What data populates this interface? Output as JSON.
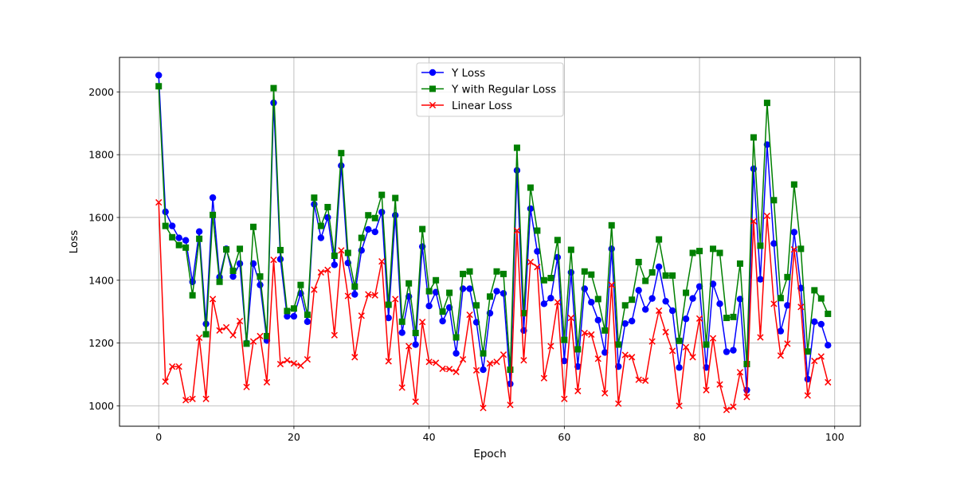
{
  "chart_data": {
    "type": "line",
    "title": "",
    "xlabel": "Epoch",
    "ylabel": "Loss",
    "xlim": [
      -5.8,
      103.8
    ],
    "ylim": [
      935,
      2110
    ],
    "xticks": [
      0,
      20,
      40,
      60,
      80,
      100
    ],
    "yticks": [
      1000,
      1200,
      1400,
      1600,
      1800,
      2000
    ],
    "grid": true,
    "legend_position": "upper center",
    "x": [
      0,
      1,
      2,
      3,
      4,
      5,
      6,
      7,
      8,
      9,
      10,
      11,
      12,
      13,
      14,
      15,
      16,
      17,
      18,
      19,
      20,
      21,
      22,
      23,
      24,
      25,
      26,
      27,
      28,
      29,
      30,
      31,
      32,
      33,
      34,
      35,
      36,
      37,
      38,
      39,
      40,
      41,
      42,
      43,
      44,
      45,
      46,
      47,
      48,
      49,
      50,
      51,
      52,
      53,
      54,
      55,
      56,
      57,
      58,
      59,
      60,
      61,
      62,
      63,
      64,
      65,
      66,
      67,
      68,
      69,
      70,
      71,
      72,
      73,
      74,
      75,
      76,
      77,
      78,
      79,
      80,
      81,
      82,
      83,
      84,
      85,
      86,
      87,
      88,
      89,
      90,
      91,
      92,
      93,
      94,
      95,
      96,
      97,
      98,
      99
    ],
    "series": [
      {
        "name": "Y Loss",
        "color": "#0000ff",
        "marker": "circle",
        "values": [
          2053,
          1618,
          1573,
          1535,
          1527,
          1395,
          1555,
          1261,
          1663,
          1410,
          1500,
          1412,
          1453,
          1200,
          1453,
          1385,
          1208,
          1965,
          1467,
          1285,
          1285,
          1358,
          1268,
          1642,
          1535,
          1600,
          1449,
          1765,
          1455,
          1355,
          1495,
          1562,
          1554,
          1617,
          1280,
          1607,
          1233,
          1348,
          1195,
          1507,
          1318,
          1362,
          1270,
          1313,
          1167,
          1373,
          1373,
          1266,
          1115,
          1295,
          1365,
          1358,
          1070,
          1750,
          1240,
          1628,
          1492,
          1325,
          1343,
          1473,
          1143,
          1425,
          1125,
          1373,
          1330,
          1273,
          1170,
          1500,
          1125,
          1262,
          1270,
          1368,
          1307,
          1342,
          1443,
          1333,
          1303,
          1122,
          1277,
          1342,
          1380,
          1122,
          1388,
          1325,
          1172,
          1177,
          1340,
          1050,
          1755,
          1403,
          1832,
          1517,
          1238,
          1320,
          1553,
          1375,
          1085,
          1268,
          1260,
          1193
        ]
      },
      {
        "name": "Y with Regular Loss",
        "color": "#008000",
        "marker": "square",
        "values": [
          2018,
          1573,
          1537,
          1512,
          1504,
          1352,
          1532,
          1228,
          1608,
          1395,
          1498,
          1430,
          1500,
          1198,
          1570,
          1412,
          1222,
          2012,
          1496,
          1302,
          1310,
          1385,
          1290,
          1663,
          1573,
          1633,
          1478,
          1805,
          1487,
          1380,
          1535,
          1607,
          1598,
          1672,
          1322,
          1662,
          1268,
          1390,
          1232,
          1563,
          1365,
          1400,
          1300,
          1360,
          1218,
          1420,
          1428,
          1320,
          1167,
          1348,
          1428,
          1420,
          1115,
          1822,
          1295,
          1695,
          1558,
          1400,
          1407,
          1528,
          1210,
          1497,
          1180,
          1428,
          1418,
          1340,
          1240,
          1575,
          1195,
          1320,
          1338,
          1458,
          1398,
          1425,
          1530,
          1415,
          1415,
          1207,
          1360,
          1487,
          1493,
          1195,
          1500,
          1487,
          1280,
          1283,
          1453,
          1133,
          1855,
          1510,
          1965,
          1655,
          1343,
          1410,
          1705,
          1500,
          1173,
          1368,
          1342,
          1293
        ]
      },
      {
        "name": "Linear Loss",
        "color": "#ff0000",
        "marker": "x",
        "values": [
          1648,
          1077,
          1125,
          1125,
          1018,
          1022,
          1217,
          1022,
          1340,
          1240,
          1250,
          1225,
          1270,
          1060,
          1205,
          1222,
          1075,
          1465,
          1133,
          1145,
          1135,
          1128,
          1148,
          1370,
          1425,
          1433,
          1225,
          1495,
          1350,
          1155,
          1287,
          1355,
          1352,
          1460,
          1142,
          1340,
          1058,
          1190,
          1013,
          1267,
          1140,
          1137,
          1118,
          1117,
          1108,
          1148,
          1290,
          1113,
          993,
          1135,
          1140,
          1163,
          1003,
          1558,
          1145,
          1458,
          1442,
          1088,
          1190,
          1330,
          1022,
          1280,
          1047,
          1232,
          1227,
          1150,
          1040,
          1385,
          1007,
          1162,
          1155,
          1083,
          1080,
          1205,
          1303,
          1235,
          1175,
          1000,
          1187,
          1155,
          1278,
          1050,
          1215,
          1068,
          987,
          997,
          1107,
          1028,
          1588,
          1218,
          1605,
          1325,
          1160,
          1198,
          1498,
          1315,
          1033,
          1143,
          1157,
          1075
        ]
      }
    ]
  }
}
